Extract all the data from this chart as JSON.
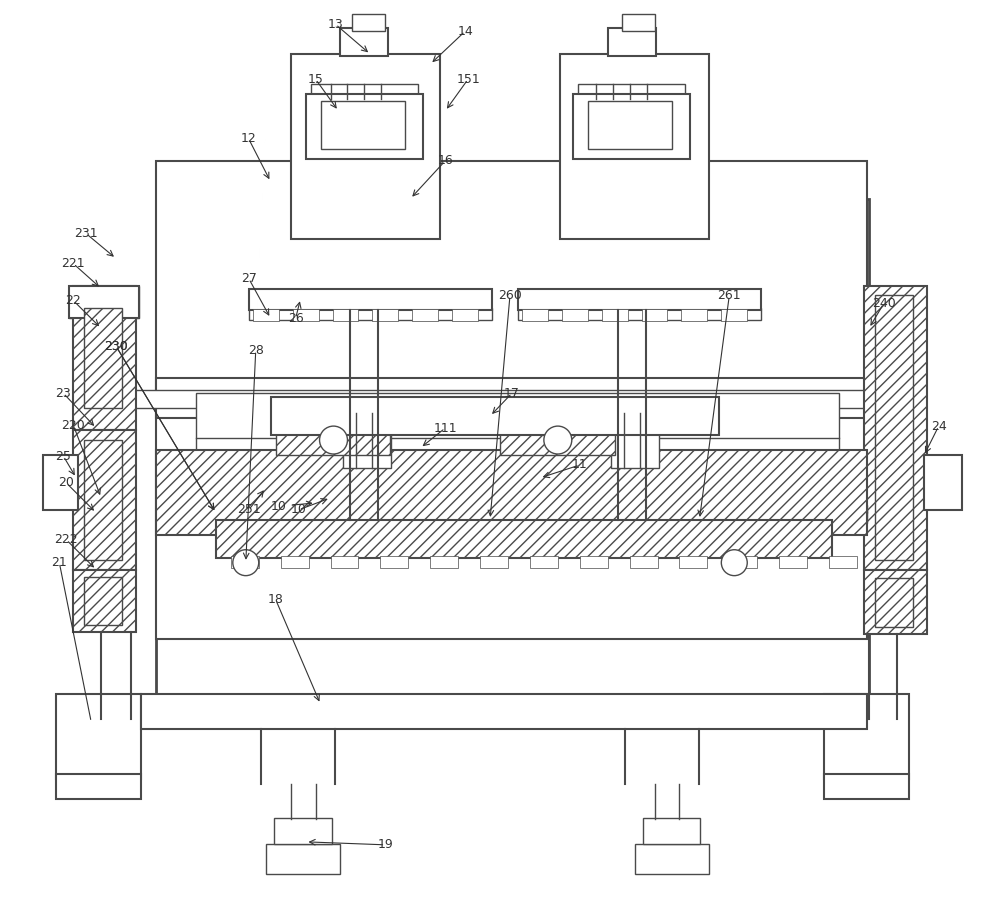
{
  "bg_color": "#ffffff",
  "lc": "#4a4a4a",
  "figsize": [
    10.0,
    9.18
  ],
  "dpi": 100
}
